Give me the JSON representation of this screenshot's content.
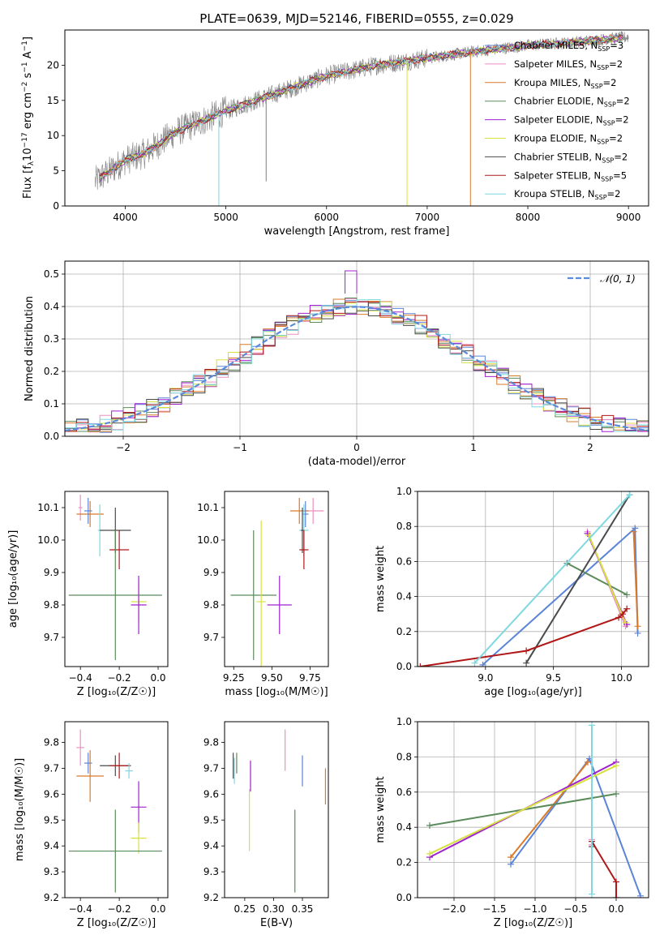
{
  "title": "PLATE=0639, MJD=52146, FIBERID=0555, z=0.029",
  "colors": {
    "chabrier_miles": "#5b84d8",
    "salpeter_miles": "#ee8fc0",
    "kroupa_miles": "#d97a2a",
    "chabrier_elodie": "#5b8a5b",
    "salpeter_elodie": "#a020d0",
    "kroupa_elodie": "#d8e040",
    "chabrier_stelib": "#4a4a4a",
    "salpeter_stelib": "#b01818",
    "kroupa_stelib": "#7fd8e0",
    "normal": "#5b8ad8",
    "data": "#808080"
  },
  "chart_data": [
    {
      "id": "spectrum",
      "type": "line",
      "xlabel": "wavelength [Angstrom, rest frame]",
      "ylabel": "Flux [f",
      "ylabel_sub": "λ",
      "ylabel_rest": "10",
      "ylabel_exp": "−17",
      "ylabel_units": " erg cm",
      "ylabel_exp2": "−2",
      "ylabel_units2": " s",
      "ylabel_exp3": "−1",
      "ylabel_units3": " A",
      "ylabel_exp4": "−1",
      "ylabel_end": "]",
      "xlim": [
        3400,
        9200
      ],
      "ylim": [
        0,
        25
      ],
      "xticks": [
        4000,
        5000,
        6000,
        7000,
        8000,
        9000
      ],
      "yticks": [
        0,
        5,
        10,
        15,
        20
      ],
      "spectrum_anchors": {
        "x": [
          3700,
          3800,
          4000,
          4200,
          4500,
          5000,
          5500,
          6000,
          6500,
          7000,
          7500,
          8000,
          8500,
          9000
        ],
        "y": [
          3.5,
          4.5,
          6.5,
          7.5,
          10.5,
          13.5,
          16.0,
          18.5,
          20.0,
          21.0,
          22.0,
          22.8,
          23.3,
          24.0
        ]
      },
      "legend": [
        {
          "label": "Chabrier MILES, N",
          "sub": "SSP",
          "val": "=3"
        },
        {
          "label": "Salpeter MILES, N",
          "sub": "SSP",
          "val": "=2"
        },
        {
          "label": "Kroupa MILES, N",
          "sub": "SSP",
          "val": "=2"
        },
        {
          "label": "Chabrier ELODIE, N",
          "sub": "SSP",
          "val": "=2"
        },
        {
          "label": "Salpeter ELODIE, N",
          "sub": "SSP",
          "val": "=2"
        },
        {
          "label": "Kroupa ELODIE, N",
          "sub": "SSP",
          "val": "=2"
        },
        {
          "label": "Chabrier STELIB, N",
          "sub": "SSP",
          "val": "=2"
        },
        {
          "label": "Salpeter STELIB, N",
          "sub": "SSP",
          "val": "=5"
        },
        {
          "label": "Kroupa STELIB, N",
          "sub": "SSP",
          "val": "=2"
        }
      ]
    },
    {
      "id": "residuals",
      "type": "histogram",
      "xlabel": "(data-model)/error",
      "ylabel": "Normed distribution",
      "xlim": [
        -2.5,
        2.5
      ],
      "ylim": [
        0,
        0.54
      ],
      "xticks": [
        -2,
        -1,
        0,
        1,
        2
      ],
      "xtick_labels": [
        "−2",
        "−1",
        "0",
        "1",
        "2"
      ],
      "yticks": [
        0.0,
        0.1,
        0.2,
        0.3,
        0.4,
        0.5
      ],
      "ytick_labels": [
        "0.0",
        "0.1",
        "0.2",
        "0.3",
        "0.4",
        "0.5"
      ],
      "grid": true,
      "legend": "𝒩(0, 1)",
      "legend_position": "top-right"
    },
    {
      "id": "age_vs_Z",
      "type": "errorbar",
      "xlabel": "Z [log₁₀(Z/Z☉)]",
      "ylabel": "age  [log₁₀(age/yr)]",
      "xlim": [
        -0.48,
        0.05
      ],
      "ylim": [
        9.61,
        10.15
      ],
      "xticks": [
        -0.4,
        -0.2,
        0.0
      ],
      "xtick_labels": [
        "−0.4",
        "−0.2",
        "0.0"
      ],
      "yticks": [
        9.7,
        9.8,
        9.9,
        10.0,
        10.1
      ],
      "ytick_labels": [
        "9.7",
        "9.8",
        "9.9",
        "10.0",
        "10.1"
      ],
      "points": [
        {
          "color": "salpeter_miles",
          "x": -0.4,
          "y": 10.1,
          "xerr": 0.01,
          "yerr": 0.04
        },
        {
          "color": "kroupa_miles",
          "x": -0.35,
          "y": 10.08,
          "xerr": 0.07,
          "yerr": 0.04
        },
        {
          "color": "chabrier_miles",
          "x": -0.36,
          "y": 10.09,
          "xerr": 0.02,
          "yerr": 0.04
        },
        {
          "color": "kroupa_stelib",
          "x": -0.3,
          "y": 10.03,
          "xerr": 0.01,
          "yerr": 0.08
        },
        {
          "color": "chabrier_stelib",
          "x": -0.22,
          "y": 10.03,
          "xerr": 0.08,
          "yerr": 0.07
        },
        {
          "color": "salpeter_stelib",
          "x": -0.2,
          "y": 9.97,
          "xerr": 0.05,
          "yerr": 0.06
        },
        {
          "color": "chabrier_elodie",
          "x": -0.22,
          "y": 9.83,
          "xerr": 0.24,
          "yerr": 0.2
        },
        {
          "color": "kroupa_elodie",
          "x": -0.1,
          "y": 9.81,
          "xerr": 0.04,
          "yerr": 0.06
        },
        {
          "color": "salpeter_elodie",
          "x": -0.1,
          "y": 9.8,
          "xerr": 0.04,
          "yerr": 0.09
        }
      ]
    },
    {
      "id": "age_vs_mass",
      "type": "errorbar",
      "xlabel": "mass [log₁₀(M/M☉)]",
      "ylabel": "",
      "xlim": [
        9.19,
        9.87
      ],
      "ylim": [
        9.61,
        10.15
      ],
      "xticks": [
        9.25,
        9.5,
        9.75
      ],
      "xtick_labels": [
        "9.25",
        "9.50",
        "9.75"
      ],
      "yticks": [
        9.7,
        9.8,
        9.9,
        10.0,
        10.1
      ],
      "ytick_labels": [
        "9.7",
        "9.8",
        "9.9",
        "10.0",
        "10.1"
      ],
      "points": [
        {
          "color": "salpeter_miles",
          "x": 9.77,
          "y": 10.09,
          "xerr": 0.07,
          "yerr": 0.04
        },
        {
          "color": "kroupa_miles",
          "x": 9.68,
          "y": 10.09,
          "xerr": 0.06,
          "yerr": 0.04
        },
        {
          "color": "chabrier_miles",
          "x": 9.72,
          "y": 10.08,
          "xerr": 0.02,
          "yerr": 0.04
        },
        {
          "color": "kroupa_stelib",
          "x": 9.71,
          "y": 10.03,
          "xerr": 0.03,
          "yerr": 0.08
        },
        {
          "color": "chabrier_stelib",
          "x": 9.7,
          "y": 10.03,
          "xerr": 0.01,
          "yerr": 0.07
        },
        {
          "color": "salpeter_stelib",
          "x": 9.71,
          "y": 9.97,
          "xerr": 0.03,
          "yerr": 0.06
        },
        {
          "color": "chabrier_elodie",
          "x": 9.38,
          "y": 9.83,
          "xerr": 0.15,
          "yerr": 0.2
        },
        {
          "color": "kroupa_elodie",
          "x": 9.43,
          "y": 9.81,
          "xerr": 0.03,
          "yerr": 0.25
        },
        {
          "color": "salpeter_elodie",
          "x": 9.55,
          "y": 9.8,
          "xerr": 0.08,
          "yerr": 0.09
        }
      ]
    },
    {
      "id": "weight_vs_age",
      "type": "line",
      "xlabel": "age  [log₁₀(age/yr)]",
      "ylabel": "mass weight",
      "xlim": [
        8.5,
        10.2
      ],
      "ylim": [
        0.0,
        1.0
      ],
      "xticks": [
        9.0,
        9.5,
        10.0
      ],
      "xtick_labels": [
        "9.0",
        "9.5",
        "10.0"
      ],
      "yticks": [
        0.0,
        0.2,
        0.4,
        0.6,
        0.8,
        1.0
      ],
      "ytick_labels": [
        "0.0",
        "0.2",
        "0.4",
        "0.6",
        "0.8",
        "1.0"
      ],
      "grid": true,
      "series": [
        {
          "color": "chabrier_miles",
          "x": [
            8.98,
            10.1,
            10.12
          ],
          "y": [
            0.01,
            0.79,
            0.19
          ]
        },
        {
          "color": "salpeter_miles",
          "x": [
            9.75,
            10.03
          ],
          "y": [
            0.77,
            0.23
          ]
        },
        {
          "color": "kroupa_miles",
          "x": [
            10.09,
            10.12
          ],
          "y": [
            0.77,
            0.23
          ]
        },
        {
          "color": "chabrier_elodie",
          "x": [
            9.6,
            10.04
          ],
          "y": [
            0.59,
            0.41
          ]
        },
        {
          "color": "salpeter_elodie",
          "x": [
            9.75,
            10.04
          ],
          "y": [
            0.76,
            0.24
          ]
        },
        {
          "color": "kroupa_elodie",
          "x": [
            9.76,
            10.03
          ],
          "y": [
            0.75,
            0.25
          ]
        },
        {
          "color": "chabrier_stelib",
          "x": [
            9.3,
            10.06
          ],
          "y": [
            0.02,
            0.98
          ]
        },
        {
          "color": "salpeter_stelib",
          "x": [
            8.52,
            9.3,
            9.98,
            10.01,
            10.04
          ],
          "y": [
            0.0,
            0.09,
            0.28,
            0.3,
            0.33
          ]
        },
        {
          "color": "kroupa_stelib",
          "x": [
            8.92,
            10.06
          ],
          "y": [
            0.02,
            0.98
          ]
        }
      ]
    },
    {
      "id": "mass_vs_Z",
      "type": "errorbar",
      "xlabel": "Z [log₁₀(Z/Z☉)]",
      "ylabel": "mass [log₁₀(M/M☉)]",
      "xlim": [
        -0.48,
        0.05
      ],
      "ylim": [
        9.2,
        9.88
      ],
      "xticks": [
        -0.4,
        -0.2,
        0.0
      ],
      "xtick_labels": [
        "−0.4",
        "−0.2",
        "0.0"
      ],
      "yticks": [
        9.2,
        9.3,
        9.4,
        9.5,
        9.6,
        9.7,
        9.8
      ],
      "ytick_labels": [
        "9.2",
        "9.3",
        "9.4",
        "9.5",
        "9.6",
        "9.7",
        "9.8"
      ],
      "points": [
        {
          "color": "salpeter_miles",
          "x": -0.4,
          "y": 9.78,
          "xerr": 0.02,
          "yerr": 0.07
        },
        {
          "color": "chabrier_miles",
          "x": -0.36,
          "y": 9.72,
          "xerr": 0.02,
          "yerr": 0.04
        },
        {
          "color": "kroupa_miles",
          "x": -0.35,
          "y": 9.67,
          "xerr": 0.07,
          "yerr": 0.1
        },
        {
          "color": "chabrier_stelib",
          "x": -0.22,
          "y": 9.71,
          "xerr": 0.08,
          "yerr": 0.04
        },
        {
          "color": "salpeter_stelib",
          "x": -0.2,
          "y": 9.71,
          "xerr": 0.05,
          "yerr": 0.05
        },
        {
          "color": "kroupa_stelib",
          "x": -0.15,
          "y": 9.69,
          "xerr": 0.02,
          "yerr": 0.03
        },
        {
          "color": "salpeter_elodie",
          "x": -0.1,
          "y": 9.55,
          "xerr": 0.04,
          "yerr": 0.1
        },
        {
          "color": "kroupa_elodie",
          "x": -0.1,
          "y": 9.43,
          "xerr": 0.04,
          "yerr": 0.06
        },
        {
          "color": "chabrier_elodie",
          "x": -0.22,
          "y": 9.38,
          "xerr": 0.24,
          "yerr": 0.16
        }
      ]
    },
    {
      "id": "mass_vs_ebv",
      "type": "errorbar",
      "xlabel": "E(B-V)",
      "ylabel": "",
      "xlim": [
        0.215,
        0.395
      ],
      "ylim": [
        9.2,
        9.88
      ],
      "xticks": [
        0.25,
        0.3,
        0.35
      ],
      "xtick_labels": [
        "0.25",
        "0.30",
        "0.35"
      ],
      "yticks": [
        9.2,
        9.3,
        9.4,
        9.5,
        9.6,
        9.7,
        9.8
      ],
      "ytick_labels": [
        "9.2",
        "9.3",
        "9.4",
        "9.5",
        "9.6",
        "9.7",
        "9.8"
      ],
      "points": [
        {
          "color": "chabrier_stelib",
          "x": 0.23,
          "y": 9.71,
          "xerr": 0.0,
          "yerr": 0.05
        },
        {
          "color": "kroupa_stelib",
          "x": 0.232,
          "y": 9.69,
          "xerr": 0.0,
          "yerr": 0.05
        },
        {
          "color": "chabrier_elodie",
          "x": 0.236,
          "y": 9.72,
          "xerr": 0.0,
          "yerr": 0.04
        },
        {
          "color": "salpeter_elodie",
          "x": 0.26,
          "y": 9.67,
          "xerr": 0.0,
          "yerr": 0.06
        },
        {
          "color": "kroupa_elodie",
          "x": 0.258,
          "y": 9.5,
          "xerr": 0.0,
          "yerr": 0.12
        },
        {
          "color": "salpeter_miles",
          "x": 0.32,
          "y": 9.77,
          "xerr": 0.0,
          "yerr": 0.08
        },
        {
          "color": "chabrier_elodie",
          "x": 0.337,
          "y": 9.38,
          "xerr": 0.0,
          "yerr": 0.16
        },
        {
          "color": "chabrier_miles",
          "x": 0.35,
          "y": 9.69,
          "xerr": 0.0,
          "yerr": 0.06
        },
        {
          "color": "kroupa_miles",
          "x": 0.39,
          "y": 9.63,
          "xerr": 0.0,
          "yerr": 0.07
        }
      ]
    },
    {
      "id": "weight_vs_Z",
      "type": "line",
      "xlabel": "Z [log₁₀(Z/Z☉)]",
      "ylabel": "mass weight",
      "xlim": [
        -2.45,
        0.4
      ],
      "ylim": [
        0.0,
        1.0
      ],
      "xticks": [
        -2.0,
        -1.5,
        -1.0,
        -0.5,
        0.0
      ],
      "xtick_labels": [
        "−2.0",
        "−1.5",
        "−1.0",
        "−0.5",
        "0.0"
      ],
      "yticks": [
        0.0,
        0.2,
        0.4,
        0.6,
        0.8,
        1.0
      ],
      "ytick_labels": [
        "0.0",
        "0.2",
        "0.4",
        "0.6",
        "0.8",
        "1.0"
      ],
      "grid": true,
      "series": [
        {
          "color": "chabrier_miles",
          "x": [
            -1.3,
            -0.33,
            0.3
          ],
          "y": [
            0.19,
            0.79,
            0.01
          ]
        },
        {
          "color": "salpeter_miles",
          "x": [
            -0.3,
            -0.3
          ],
          "y": [
            0.33,
            0.3
          ]
        },
        {
          "color": "kroupa_miles",
          "x": [
            -1.3,
            -0.35
          ],
          "y": [
            0.23,
            0.77
          ]
        },
        {
          "color": "chabrier_elodie",
          "x": [
            -2.3,
            0.0
          ],
          "y": [
            0.41,
            0.59
          ]
        },
        {
          "color": "salpeter_elodie",
          "x": [
            -2.3,
            0.0
          ],
          "y": [
            0.23,
            0.77
          ]
        },
        {
          "color": "kroupa_elodie",
          "x": [
            -2.3,
            0.0
          ],
          "y": [
            0.25,
            0.75
          ]
        },
        {
          "color": "chabrier_stelib",
          "x": [
            -0.3,
            -0.3
          ],
          "y": [
            0.32,
            0.29
          ]
        },
        {
          "color": "salpeter_stelib",
          "x": [
            -0.3,
            0.0,
            0.0
          ],
          "y": [
            0.32,
            0.09,
            0.0
          ]
        },
        {
          "color": "kroupa_stelib",
          "x": [
            -0.3,
            -0.3
          ],
          "y": [
            0.02,
            0.98
          ]
        }
      ]
    }
  ]
}
